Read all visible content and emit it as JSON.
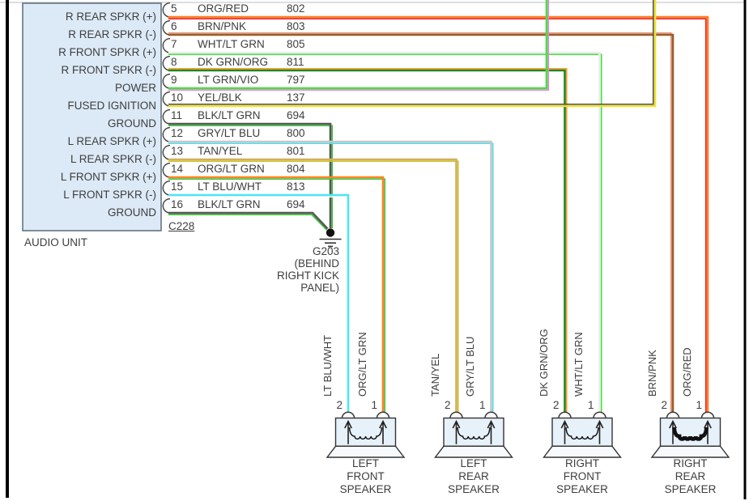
{
  "palette": {
    "audio_unit_fill": "#DCE9F6",
    "audio_unit_border": "#5B6C7A",
    "speaker_fill": "#E7F1FA",
    "line_color": "#3A3A3A",
    "frame_color": "#000000",
    "top_rule_color": "#C9C9C9"
  },
  "audio_unit": {
    "label": "AUDIO UNIT",
    "connector_label": "C228",
    "pins": [
      {
        "number": "5",
        "box_label": "R REAR SPKR (+)",
        "color_name": "ORG/RED",
        "circuit": "802",
        "wire_main": "#FF7E26",
        "wire_stripe": "#EE2020"
      },
      {
        "number": "6",
        "box_label": "R REAR SPKR (-)",
        "color_name": "BRN/PNK",
        "circuit": "803",
        "wire_main": "#9E5A28",
        "wire_stripe": "#DE9478"
      },
      {
        "number": "7",
        "box_label": "R FRONT SPKR (+)",
        "color_name": "WHT/LT GRN",
        "circuit": "805",
        "wire_main": "#ECECEC",
        "wire_stripe": "#46E23E"
      },
      {
        "number": "8",
        "box_label": "R FRONT SPKR (-)",
        "color_name": "DK GRN/ORG",
        "circuit": "811",
        "wire_main": "#1F8521",
        "wire_stripe": "#FF9A26"
      },
      {
        "number": "9",
        "box_label": "POWER",
        "color_name": "LT GRN/VIO",
        "circuit": "797",
        "wire_main": "#3FE33A",
        "wire_stripe": "#F07BE6"
      },
      {
        "number": "10",
        "box_label": "FUSED IGNITION",
        "color_name": "YEL/BLK",
        "circuit": "137",
        "wire_main": "#EFE22E",
        "wire_stripe": "#555555"
      },
      {
        "number": "11",
        "box_label": "GROUND",
        "color_name": "BLK/LT GRN",
        "circuit": "694",
        "wire_main": "#575757",
        "wire_stripe": "#38C436"
      },
      {
        "number": "12",
        "box_label": "L REAR SPKR (+)",
        "color_name": "GRY/LT BLU",
        "circuit": "800",
        "wire_main": "#C7C7C7",
        "wire_stripe": "#58DDEF"
      },
      {
        "number": "13",
        "box_label": "L REAR SPKR (-)",
        "color_name": "TAN/YEL",
        "circuit": "801",
        "wire_main": "#CFAF62",
        "wire_stripe": "#D2C11F"
      },
      {
        "number": "14",
        "box_label": "L FRONT SPKR (+)",
        "color_name": "ORG/LT GRN",
        "circuit": "804",
        "wire_main": "#FF8326",
        "wire_stripe": "#3FC83D"
      },
      {
        "number": "15",
        "box_label": "L FRONT SPKR (-)",
        "color_name": "LT BLU/WHT",
        "circuit": "813",
        "wire_main": "#4FE4F6",
        "wire_stripe": "#FAFAFA"
      },
      {
        "number": "16",
        "box_label": "GROUND",
        "color_name": "BLK/LT GRN",
        "circuit": "694",
        "wire_main": "#575757",
        "wire_stripe": "#38C436"
      }
    ]
  },
  "ground": {
    "label": "G203\n(BEHIND\nRIGHT KICK\nPANEL)"
  },
  "speakers": [
    {
      "name": "LEFT\nFRONT\nSPEAKER",
      "pins": [
        {
          "number": "2",
          "wire": "LT BLU/WHT"
        },
        {
          "number": "1",
          "wire": "ORG/LT GRN"
        }
      ]
    },
    {
      "name": "LEFT\nREAR\nSPEAKER",
      "pins": [
        {
          "number": "2",
          "wire": "TAN/YEL"
        },
        {
          "number": "1",
          "wire": "GRY/LT BLU"
        }
      ]
    },
    {
      "name": "RIGHT\nFRONT\nSPEAKER",
      "pins": [
        {
          "number": "2",
          "wire": "DK GRN/ORG"
        },
        {
          "number": "1",
          "wire": "WHT/LT GRN"
        }
      ]
    },
    {
      "name": "RIGHT\nREAR\nSPEAKER",
      "pins": [
        {
          "number": "2",
          "wire": "BRN/PNK"
        },
        {
          "number": "1",
          "wire": "ORG/RED"
        }
      ]
    }
  ]
}
